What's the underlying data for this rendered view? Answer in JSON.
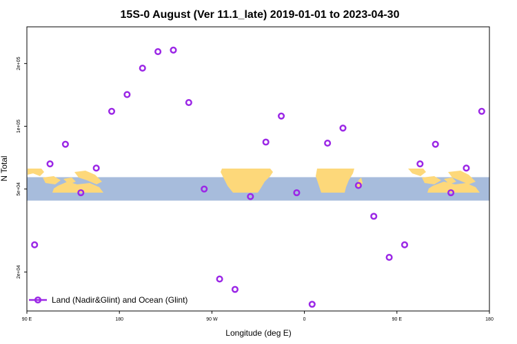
{
  "chart_data": {
    "type": "scatter",
    "title": "15S-0 August (Ver 11.1_late)   2019-01-01 to 2023-04-30",
    "xlabel": "Longitude (deg E)",
    "ylabel": "N Total",
    "x_tick_labels": [
      "90 E",
      "180",
      "90 W",
      "0",
      "90 E",
      "180"
    ],
    "y_tick_labels": [
      "2e+04",
      "5e+04",
      "1e+05",
      "2e+05"
    ],
    "y_scale": "log",
    "y_ticks": [
      20000,
      50000,
      100000,
      200000
    ],
    "x_ticks": [
      90,
      180,
      270,
      360,
      450,
      540
    ],
    "xlim": [
      90,
      540
    ],
    "ylim": [
      13000,
      300000
    ],
    "grid": false,
    "legend_position": "bottom-left",
    "background_map": {
      "latitude_band": "15S-0",
      "ocean_color": "#a7bcdc",
      "land_color": "#fdd87a",
      "y_band": [
        44000,
        57000
      ]
    },
    "series": [
      {
        "name": "Land (Nadir&Glint) and Ocean (Glint)",
        "color": "#9b27e6",
        "marker": "circle-open",
        "x": [
          97.5,
          112.5,
          127.5,
          142.5,
          157.5,
          172.5,
          187.5,
          202.5,
          217.5,
          232.5,
          247.5,
          262.5,
          277.5,
          292.5,
          307.5,
          322.5,
          337.5,
          352.5,
          367.5,
          382.5,
          397.5,
          412.5,
          427.5,
          442.5,
          457.5,
          472.5,
          487.5,
          502.5,
          517.5,
          532.5
        ],
        "y": [
          27000,
          66000,
          82000,
          48000,
          63000,
          118000,
          142000,
          190000,
          228000,
          232000,
          130000,
          50000,
          18500,
          16500,
          46000,
          84000,
          112000,
          48000,
          14000,
          83000,
          98000,
          52000,
          37000,
          23500,
          27000,
          66000,
          82000,
          48000,
          63000,
          118000
        ]
      }
    ]
  }
}
